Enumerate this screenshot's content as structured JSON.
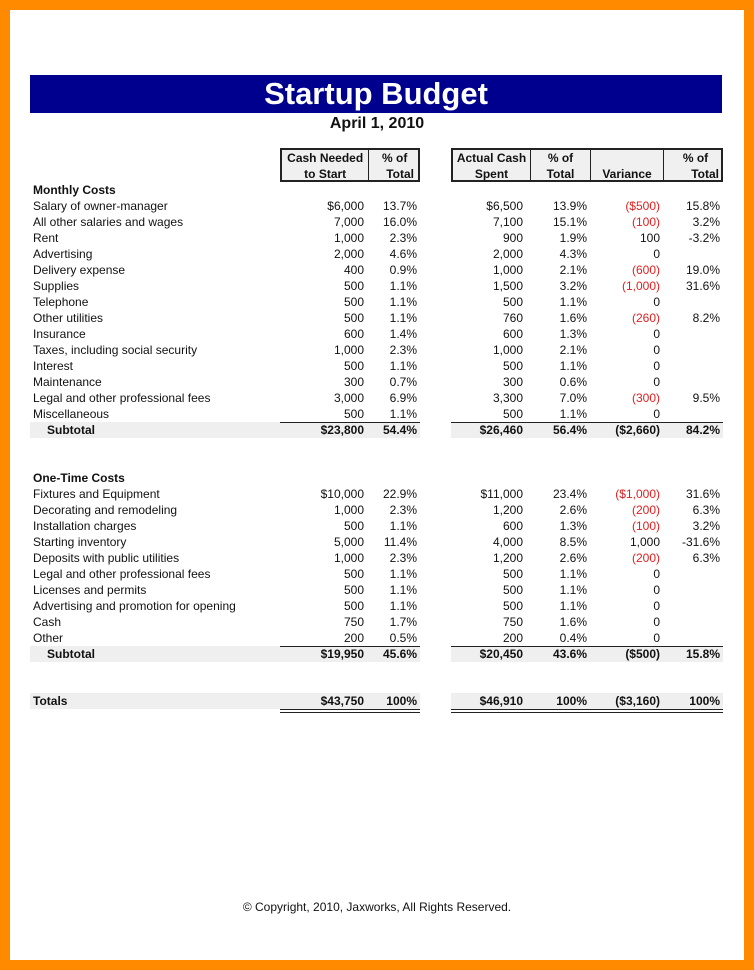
{
  "title": "Startup Budget",
  "date": "April 1, 2010",
  "headers": {
    "cash_needed": [
      "Cash Needed",
      "to Start"
    ],
    "pct1": [
      "% of",
      "Total"
    ],
    "actual": [
      "Actual Cash",
      "Spent"
    ],
    "pct2": [
      "% of",
      "Total"
    ],
    "variance": "Variance",
    "pct3": [
      "% of",
      "Total"
    ]
  },
  "colors": {
    "title_bar": "#00008e",
    "negative": "#e02020",
    "border": "#ff8a00"
  },
  "sections": [
    {
      "heading": "Monthly Costs",
      "rows": [
        [
          "Salary of owner-manager",
          "$6,000",
          "13.7%",
          "$6,500",
          "13.9%",
          "($500)",
          "15.8%"
        ],
        [
          "All other salaries and wages",
          "7,000",
          "16.0%",
          "7,100",
          "15.1%",
          "(100)",
          "3.2%"
        ],
        [
          "Rent",
          "1,000",
          "2.3%",
          "900",
          "1.9%",
          "100",
          "-3.2%"
        ],
        [
          "Advertising",
          "2,000",
          "4.6%",
          "2,000",
          "4.3%",
          "0",
          ""
        ],
        [
          "Delivery expense",
          "400",
          "0.9%",
          "1,000",
          "2.1%",
          "(600)",
          "19.0%"
        ],
        [
          "Supplies",
          "500",
          "1.1%",
          "1,500",
          "3.2%",
          "(1,000)",
          "31.6%"
        ],
        [
          "Telephone",
          "500",
          "1.1%",
          "500",
          "1.1%",
          "0",
          ""
        ],
        [
          "Other utilities",
          "500",
          "1.1%",
          "760",
          "1.6%",
          "(260)",
          "8.2%"
        ],
        [
          "Insurance",
          "600",
          "1.4%",
          "600",
          "1.3%",
          "0",
          ""
        ],
        [
          "Taxes, including social security",
          "1,000",
          "2.3%",
          "1,000",
          "2.1%",
          "0",
          ""
        ],
        [
          "Interest",
          "500",
          "1.1%",
          "500",
          "1.1%",
          "0",
          ""
        ],
        [
          "Maintenance",
          "300",
          "0.7%",
          "300",
          "0.6%",
          "0",
          ""
        ],
        [
          "Legal and other professional fees",
          "3,000",
          "6.9%",
          "3,300",
          "7.0%",
          "(300)",
          "9.5%"
        ],
        [
          "Miscellaneous",
          "500",
          "1.1%",
          "500",
          "1.1%",
          "0",
          ""
        ]
      ],
      "subtotal": [
        "Subtotal",
        "$23,800",
        "54.4%",
        "$26,460",
        "56.4%",
        "($2,660)",
        "84.2%"
      ]
    },
    {
      "heading": "One-Time Costs",
      "rows": [
        [
          "Fixtures and Equipment",
          "$10,000",
          "22.9%",
          "$11,000",
          "23.4%",
          "($1,000)",
          "31.6%"
        ],
        [
          "Decorating and remodeling",
          "1,000",
          "2.3%",
          "1,200",
          "2.6%",
          "(200)",
          "6.3%"
        ],
        [
          "Installation charges",
          "500",
          "1.1%",
          "600",
          "1.3%",
          "(100)",
          "3.2%"
        ],
        [
          "Starting inventory",
          "5,000",
          "11.4%",
          "4,000",
          "8.5%",
          "1,000",
          "-31.6%"
        ],
        [
          "Deposits with public utilities",
          "1,000",
          "2.3%",
          "1,200",
          "2.6%",
          "(200)",
          "6.3%"
        ],
        [
          "Legal and other professional fees",
          "500",
          "1.1%",
          "500",
          "1.1%",
          "0",
          ""
        ],
        [
          "Licenses and permits",
          "500",
          "1.1%",
          "500",
          "1.1%",
          "0",
          ""
        ],
        [
          "Advertising and promotion for opening",
          "500",
          "1.1%",
          "500",
          "1.1%",
          "0",
          ""
        ],
        [
          "Cash",
          "750",
          "1.7%",
          "750",
          "1.6%",
          "0",
          ""
        ],
        [
          "Other",
          "200",
          "0.5%",
          "200",
          "0.4%",
          "0",
          ""
        ]
      ],
      "subtotal": [
        "Subtotal",
        "$19,950",
        "45.6%",
        "$20,450",
        "43.6%",
        "($500)",
        "15.8%"
      ]
    }
  ],
  "totals": [
    "Totals",
    "$43,750",
    "100%",
    "$46,910",
    "100%",
    "($3,160)",
    "100%"
  ],
  "copyright": "© Copyright, 2010, Jaxworks, All Rights Reserved."
}
